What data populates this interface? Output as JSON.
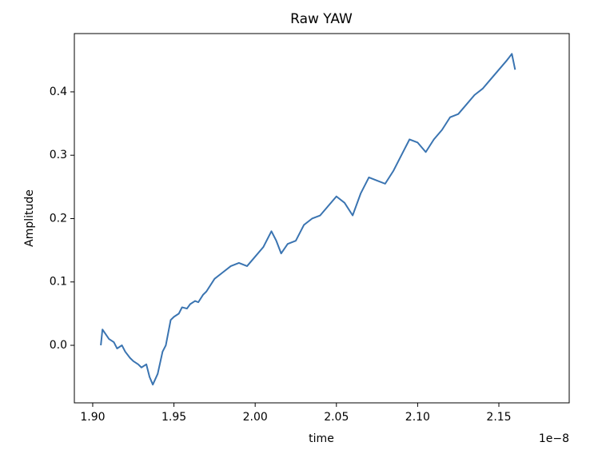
{
  "chart_data": {
    "type": "line",
    "title": "Raw YAW",
    "x_label": "time",
    "y_label": "Amplitude",
    "x_offset_label": "1e−8",
    "x": [
      1.905,
      1.906,
      1.91,
      1.913,
      1.915,
      1.918,
      1.92,
      1.923,
      1.925,
      1.928,
      1.93,
      1.933,
      1.935,
      1.937,
      1.94,
      1.943,
      1.945,
      1.948,
      1.95,
      1.953,
      1.955,
      1.958,
      1.96,
      1.963,
      1.965,
      1.968,
      1.97,
      1.975,
      1.98,
      1.985,
      1.99,
      1.995,
      2.0,
      2.005,
      2.01,
      2.013,
      2.016,
      2.02,
      2.025,
      2.03,
      2.035,
      2.04,
      2.045,
      2.05,
      2.055,
      2.06,
      2.065,
      2.07,
      2.075,
      2.08,
      2.085,
      2.09,
      2.095,
      2.1,
      2.105,
      2.11,
      2.115,
      2.12,
      2.125,
      2.13,
      2.135,
      2.14,
      2.145,
      2.15,
      2.155,
      2.158,
      2.16
    ],
    "series": [
      {
        "name": "Raw YAW",
        "color": "#3a74b1",
        "values": [
          0.0,
          0.025,
          0.01,
          0.005,
          -0.005,
          0.0,
          -0.01,
          -0.02,
          -0.025,
          -0.03,
          -0.035,
          -0.03,
          -0.05,
          -0.062,
          -0.045,
          -0.01,
          0.0,
          0.04,
          0.045,
          0.05,
          0.06,
          0.058,
          0.065,
          0.07,
          0.068,
          0.08,
          0.085,
          0.105,
          0.115,
          0.125,
          0.13,
          0.125,
          0.14,
          0.155,
          0.18,
          0.165,
          0.145,
          0.16,
          0.165,
          0.19,
          0.2,
          0.205,
          0.22,
          0.235,
          0.225,
          0.205,
          0.24,
          0.265,
          0.26,
          0.255,
          0.275,
          0.3,
          0.325,
          0.32,
          0.305,
          0.325,
          0.34,
          0.36,
          0.365,
          0.38,
          0.395,
          0.405,
          0.42,
          0.435,
          0.45,
          0.46,
          0.435
        ]
      }
    ],
    "xlim": [
      1.8887,
      2.1933
    ],
    "ylim": [
      -0.0908,
      0.492
    ],
    "xticks": [
      {
        "value": 1.9,
        "label": "1.90"
      },
      {
        "value": 1.95,
        "label": "1.95"
      },
      {
        "value": 2.0,
        "label": "2.00"
      },
      {
        "value": 2.05,
        "label": "2.05"
      },
      {
        "value": 2.1,
        "label": "2.10"
      },
      {
        "value": 2.15,
        "label": "2.15"
      }
    ],
    "yticks": [
      {
        "value": 0,
        "label": "0.0"
      },
      0.1,
      0.2,
      0.3,
      0.4
    ]
  }
}
